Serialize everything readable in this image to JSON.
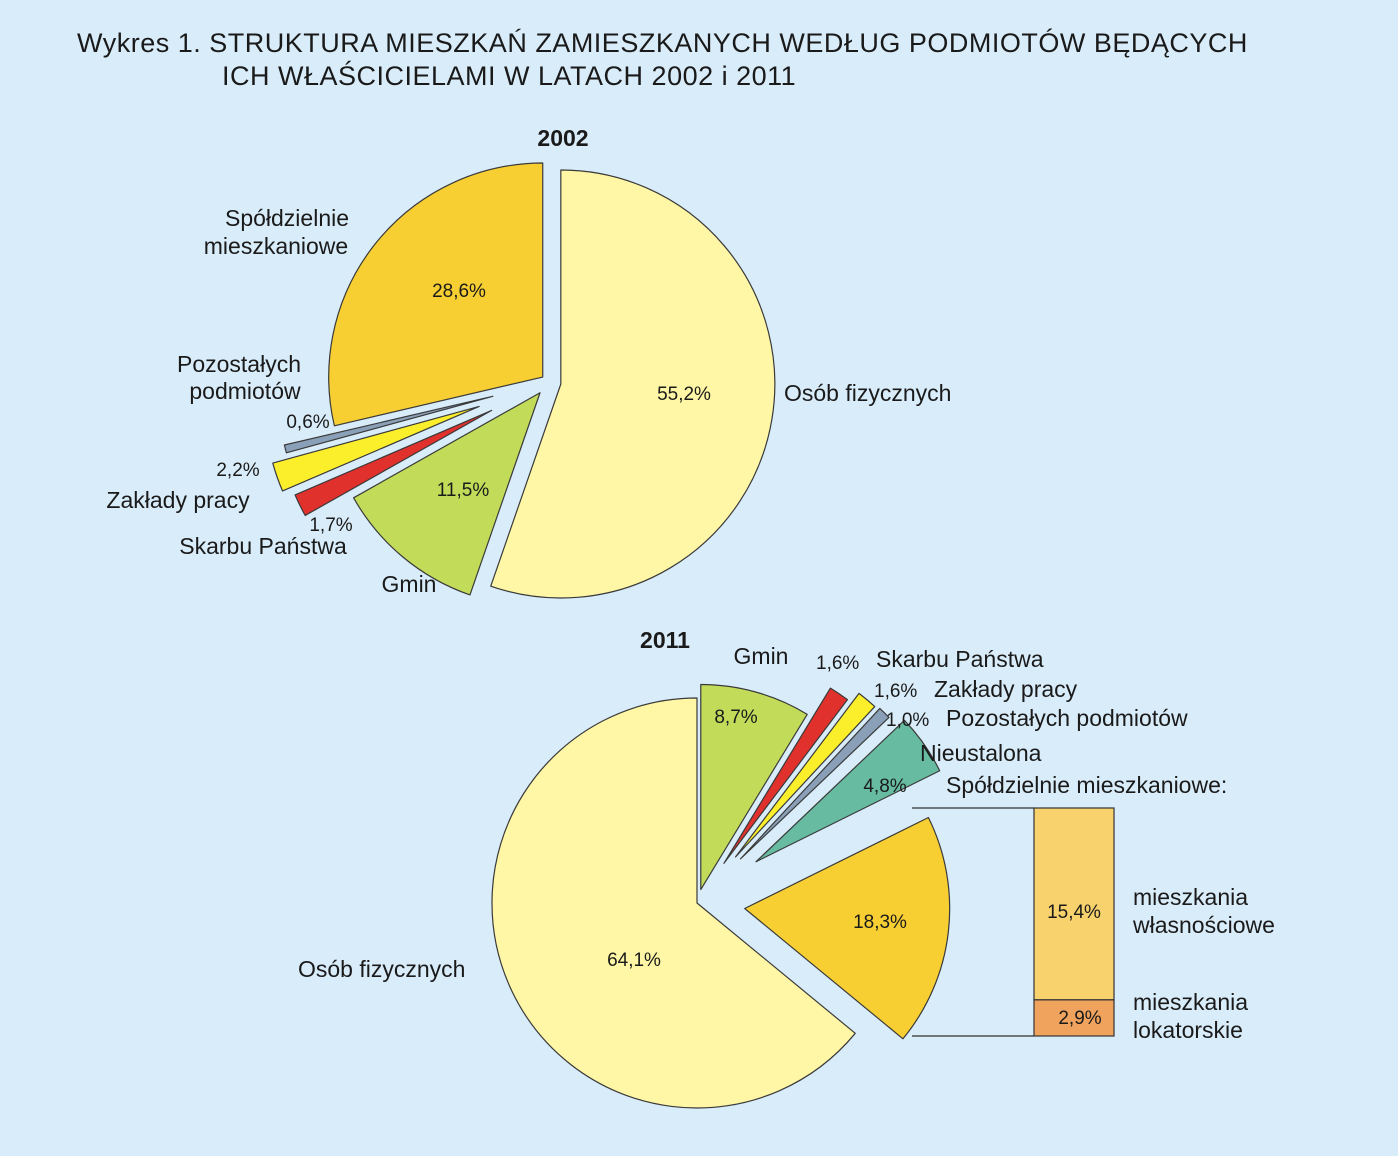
{
  "title": {
    "line1": "Wykres 1. STRUKTURA MIESZKAŃ ZAMIESZKANYCH WEDŁUG PODMIOTÓW BĘDĄCYCH",
    "line2": "ICH WŁAŚCICIELAMI W LATACH 2002 i 2011"
  },
  "chart_data": [
    {
      "type": "pie",
      "title": "2002",
      "unit": "%",
      "slices": [
        {
          "name": "Osób fizycznych",
          "value": 55.2,
          "label": "55,2%",
          "color": "#fff7a6"
        },
        {
          "name": "Gmin",
          "value": 11.5,
          "label": "11,5%",
          "color": "#c2dc5a"
        },
        {
          "name": "Skarbu Państwa",
          "value": 1.7,
          "label": "1,7%",
          "color": "#e0312d"
        },
        {
          "name": "Zakłady pracy",
          "value": 2.2,
          "label": "2,2%",
          "color": "#fbef2c"
        },
        {
          "name": "Pozostałych podmiotów",
          "value": 0.6,
          "label": "0,6%",
          "color": "#8aa0b8"
        },
        {
          "name": "Spółdzielnie mieszkaniowe",
          "value": 28.6,
          "label": "28,6%",
          "color": "#f8cf33"
        }
      ]
    },
    {
      "type": "pie",
      "title": "2011",
      "unit": "%",
      "slices": [
        {
          "name": "Gmin",
          "value": 8.7,
          "label": "8,7%",
          "color": "#c2dc5a"
        },
        {
          "name": "Skarbu Państwa",
          "value": 1.6,
          "label": "1,6%",
          "color": "#e0312d"
        },
        {
          "name": "Zakłady pracy",
          "value": 1.6,
          "label": "1,6%",
          "color": "#fbef2c"
        },
        {
          "name": "Pozostałych podmiotów",
          "value": 1.0,
          "label": "1,0%",
          "color": "#8aa0b8"
        },
        {
          "name": "Nieustalona",
          "value": 4.8,
          "label": "4,8%",
          "color": "#66bba0"
        },
        {
          "name": "Spółdzielnie mieszkaniowe",
          "value": 18.3,
          "label": "18,3%",
          "color": "#f8cf33"
        },
        {
          "name": "Osób fizycznych",
          "value": 64.1,
          "label": "64,1%",
          "color": "#fff7a6"
        }
      ],
      "breakdown": {
        "title": "Spółdzielnie mieszkaniowe:",
        "type": "stacked-bar",
        "segments": [
          {
            "name_line1": "mieszkania",
            "name_line2": "własnościowe",
            "value": 15.4,
            "label": "15,4%",
            "color": "#f8d26c"
          },
          {
            "name_line1": "mieszkania",
            "name_line2": "lokatorskie",
            "value": 2.9,
            "label": "2,9%",
            "color": "#efa35c"
          }
        ]
      }
    }
  ]
}
